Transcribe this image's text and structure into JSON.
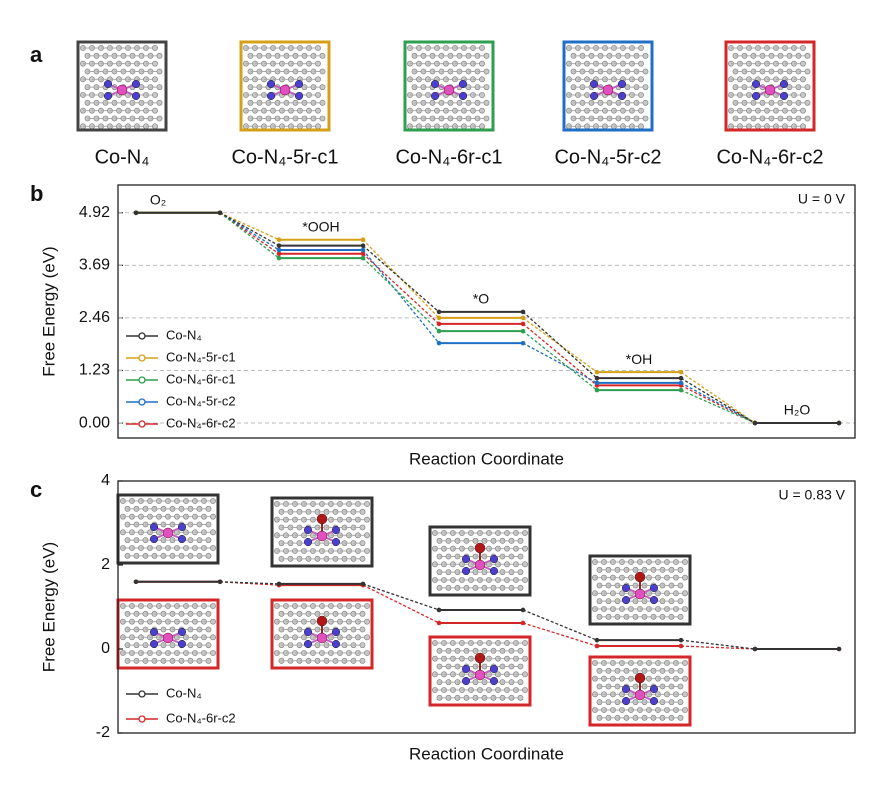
{
  "panel_a": {
    "letter": "a",
    "structures": [
      {
        "label": "Co-N₄",
        "color": "#444444"
      },
      {
        "label": "Co-N₄-5r-c1",
        "color": "#d4a017"
      },
      {
        "label": "Co-N₄-6r-c1",
        "color": "#2e9e4f"
      },
      {
        "label": "Co-N₄-5r-c2",
        "color": "#1f6fc5"
      },
      {
        "label": "Co-N₄-6r-c2",
        "color": "#d62728"
      }
    ]
  },
  "chart_data": [
    {
      "type": "energy-diagram",
      "panel": "b",
      "annotation": "U = 0 V",
      "ylabel": "Free Energy (eV)",
      "xlabel": "Reaction Coordinate",
      "categories": [
        "O₂",
        "*OOH",
        "*O",
        "*OH",
        "H₂O"
      ],
      "ylim": [
        -0.35,
        5.57
      ],
      "yticks": [
        {
          "value": 0,
          "label": "0.00"
        },
        1.23,
        2.46,
        3.69,
        4.92
      ],
      "grid": true,
      "legend": "lower left",
      "series": [
        {
          "name": "Co-N₄",
          "color": "#333333",
          "values": [
            4.92,
            4.15,
            2.6,
            1.05,
            0
          ]
        },
        {
          "name": "Co-N₄-5r-c1",
          "color": "#d4a017",
          "values": [
            4.92,
            4.29,
            2.46,
            1.19,
            0
          ]
        },
        {
          "name": "Co-N₄-6r-c1",
          "color": "#2e9e4f",
          "values": [
            4.92,
            3.86,
            2.15,
            0.77,
            0
          ]
        },
        {
          "name": "Co-N₄-5r-c2",
          "color": "#1f6fc5",
          "values": [
            4.92,
            4.05,
            1.87,
            0.94,
            0
          ]
        },
        {
          "name": "Co-N₄-6r-c2",
          "color": "#d62728",
          "values": [
            4.92,
            3.96,
            2.32,
            0.88,
            0
          ]
        }
      ]
    },
    {
      "type": "energy-diagram",
      "panel": "c",
      "annotation": "U = 0.83 V",
      "ylabel": "Free Energy (eV)",
      "xlabel": "Reaction Coordinate",
      "categories": [
        null,
        null,
        null,
        null,
        null
      ],
      "ylim": [
        -2,
        4
      ],
      "yticks": [
        -2,
        0,
        2,
        4
      ],
      "grid": false,
      "legend": "lower left",
      "series": [
        {
          "name": "Co-N₄",
          "color": "#333333",
          "values": [
            1.6,
            1.55,
            0.93,
            0.21,
            0
          ]
        },
        {
          "name": "Co-N₄-6r-c2",
          "color": "#d62728",
          "values": [
            1.6,
            1.52,
            0.62,
            0.07,
            0
          ]
        }
      ]
    }
  ]
}
